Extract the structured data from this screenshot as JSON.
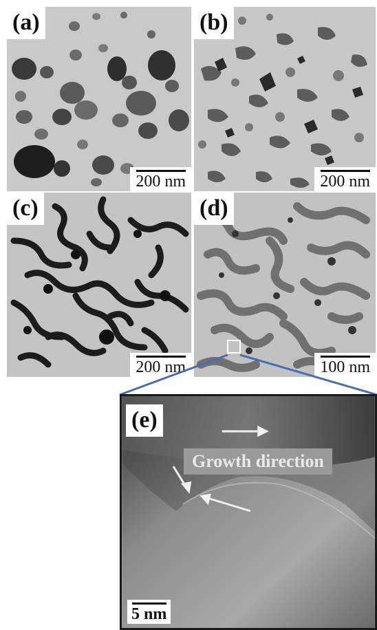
{
  "panels": [
    {
      "label": "(a)",
      "scale": "200 nm"
    },
    {
      "label": "(b)",
      "scale": "200 nm"
    },
    {
      "label": "(c)",
      "scale": "200 nm"
    },
    {
      "label": "(d)",
      "scale": "100 nm"
    },
    {
      "label": "(e)",
      "scale": "5 nm"
    }
  ],
  "annotation": "Growth direction",
  "colors": {
    "zoom_line": "#4a6bb5"
  }
}
